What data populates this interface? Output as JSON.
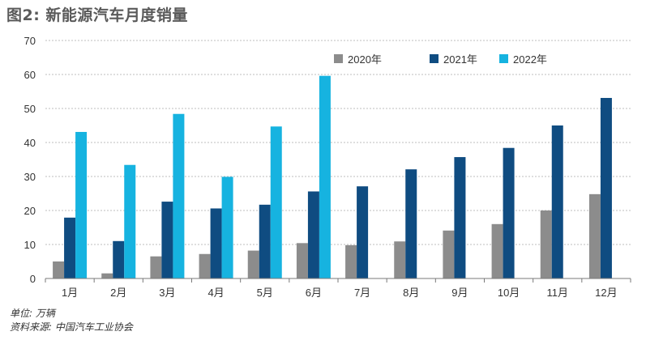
{
  "title": "图2: 新能源汽车月度销量",
  "footnotes": {
    "unit": "单位: 万辆",
    "source": "资料来源: 中国汽车工业协会"
  },
  "chart_data": {
    "type": "bar",
    "title": "图2: 新能源汽车月度销量",
    "xlabel": "",
    "ylabel": "",
    "ylim": [
      0,
      70
    ],
    "yticks": [
      0,
      10,
      20,
      30,
      40,
      50,
      60,
      70
    ],
    "grid": "horizontal dashed",
    "legend_position": "top-right",
    "categories": [
      "1月",
      "2月",
      "3月",
      "4月",
      "5月",
      "6月",
      "7月",
      "8月",
      "9月",
      "10月",
      "11月",
      "12月"
    ],
    "series": [
      {
        "name": "2020年",
        "color": "#8c8c8c",
        "values": [
          5,
          1.5,
          6.5,
          7.2,
          8.2,
          10.4,
          9.8,
          10.9,
          14.1,
          16,
          20,
          24.8
        ]
      },
      {
        "name": "2021年",
        "color": "#0f4c81",
        "values": [
          17.9,
          11,
          22.6,
          20.6,
          21.7,
          25.6,
          27.1,
          32.1,
          35.7,
          38.4,
          45,
          53.1
        ]
      },
      {
        "name": "2022年",
        "color": "#16b3e0",
        "values": [
          43.1,
          33.4,
          48.4,
          29.9,
          44.7,
          59.6,
          null,
          null,
          null,
          null,
          null,
          null
        ]
      }
    ]
  }
}
